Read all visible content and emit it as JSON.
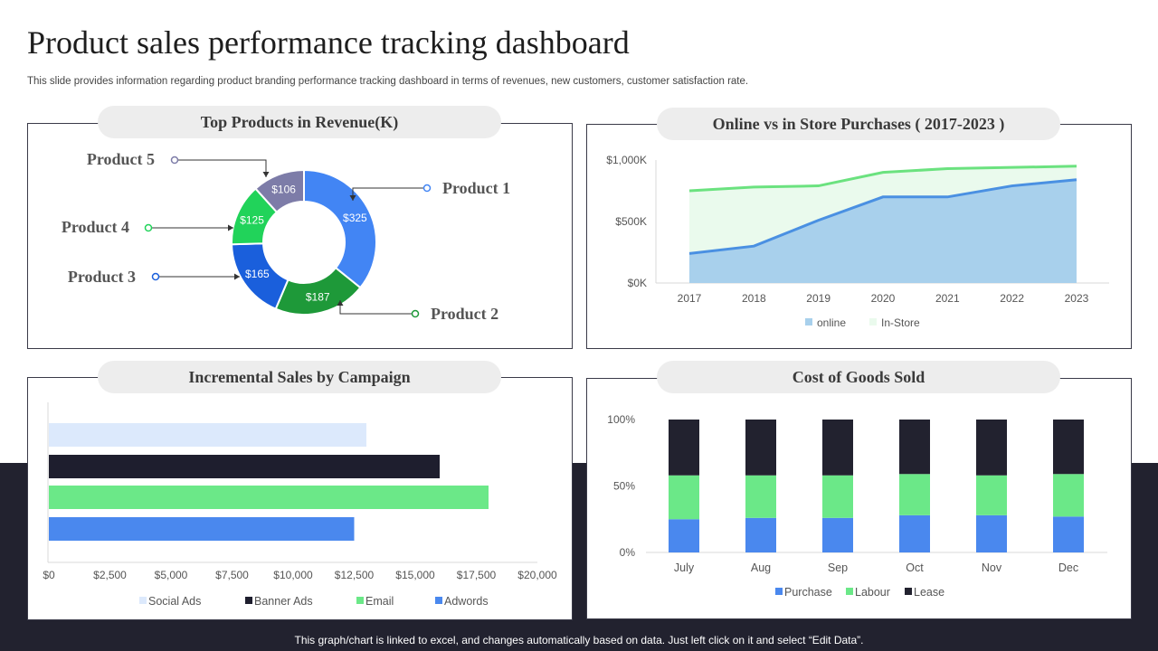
{
  "header": {
    "title": "Product sales performance tracking dashboard",
    "subtitle": "This slide provides information regarding product branding performance tracking dashboard in terms of revenues, new customers, customer satisfaction rate."
  },
  "footer": "This graph/chart is linked to excel,  and changes automatically based on data. Just left click on it and select “Edit Data”.",
  "colors": {
    "background": "#ffffff",
    "band": "#22222f",
    "pill": "#ededed"
  },
  "chart_data": [
    {
      "type": "pie",
      "title": "Top Products in Revenue(K)",
      "slices": [
        {
          "name": "Product 1",
          "value": 325,
          "label": "$325",
          "color": "#4285f4"
        },
        {
          "name": "Product 2",
          "value": 187,
          "label": "$187",
          "color": "#1e9939"
        },
        {
          "name": "Product 3",
          "value": 165,
          "label": "$165",
          "color": "#1a5fdc"
        },
        {
          "name": "Product 4",
          "value": 125,
          "label": "$125",
          "color": "#21d35a"
        },
        {
          "name": "Product 5",
          "value": 106,
          "label": "$106",
          "color": "#7d7ca8"
        }
      ]
    },
    {
      "type": "area",
      "title": "Online vs in Store Purchases ( 2017-2023 )",
      "x": [
        "2017",
        "2018",
        "2019",
        "2020",
        "2021",
        "2022",
        "2023"
      ],
      "series": [
        {
          "name": "online",
          "values": [
            240,
            300,
            510,
            700,
            700,
            790,
            840
          ],
          "color": "#4a90e2",
          "fill": "#a8d0ec"
        },
        {
          "name": "In-Store",
          "values": [
            750,
            780,
            790,
            900,
            930,
            940,
            950
          ],
          "color": "#6be27f",
          "fill": "#eafaed"
        }
      ],
      "yticks": [
        "$0K",
        "$500K",
        "$1,000K"
      ],
      "ylim": [
        0,
        1000
      ],
      "legend": "bottom"
    },
    {
      "type": "bar",
      "orientation": "horizontal",
      "title": "Incremental Sales by Campaign",
      "series": [
        {
          "name": "Social Ads",
          "value": 13000,
          "color": "#dce9fc"
        },
        {
          "name": "Banner Ads",
          "value": 16000,
          "color": "#1e1e2e"
        },
        {
          "name": "Email",
          "value": 18000,
          "color": "#6be888"
        },
        {
          "name": "Adwords",
          "value": 12500,
          "color": "#4a88ee"
        }
      ],
      "xticks": [
        "$0",
        "$2,500",
        "$5,000",
        "$7,500",
        "$10,000",
        "$12,500",
        "$15,000",
        "$17,500",
        "$20,000"
      ],
      "xlim": [
        0,
        20000
      ],
      "legend": "bottom"
    },
    {
      "type": "bar",
      "stacked": "percent",
      "title": "Cost of Goods Sold",
      "categories": [
        "July",
        "Aug",
        "Sep",
        "Oct",
        "Nov",
        "Dec"
      ],
      "series": [
        {
          "name": "Purchase",
          "values": [
            25,
            26,
            26,
            28,
            28,
            27
          ],
          "color": "#4a88ee"
        },
        {
          "name": "Labour",
          "values": [
            33,
            32,
            32,
            31,
            30,
            32
          ],
          "color": "#6be888"
        },
        {
          "name": "Lease",
          "values": [
            42,
            42,
            42,
            41,
            42,
            41
          ],
          "color": "#22222f"
        }
      ],
      "yticks": [
        "0%",
        "50%",
        "100%"
      ],
      "ylim": [
        0,
        100
      ],
      "legend": "bottom"
    }
  ]
}
